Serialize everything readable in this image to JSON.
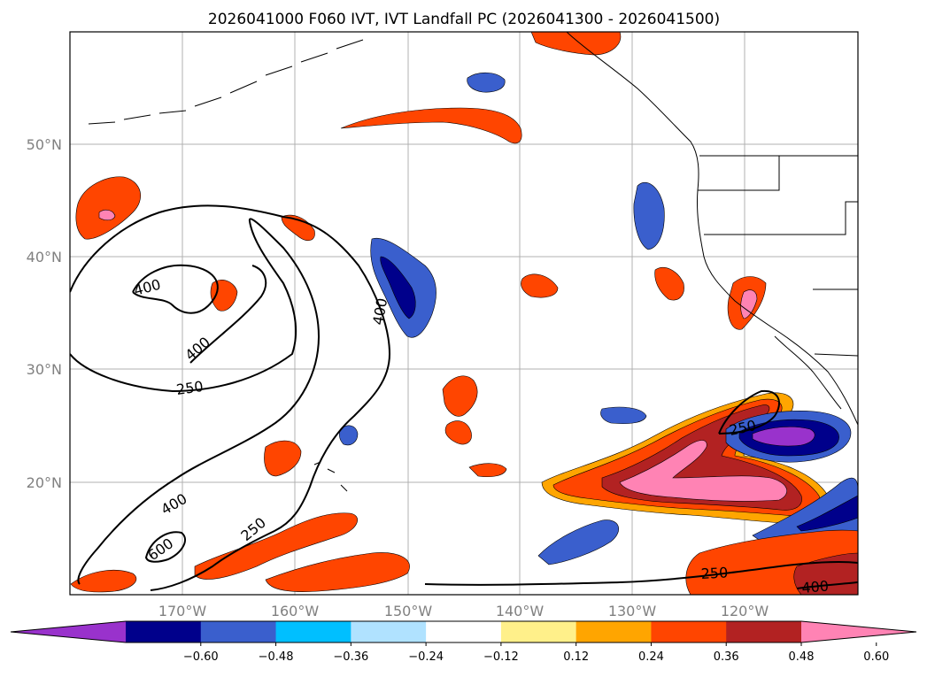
{
  "title": "2026041000 F060 IVT, IVT Landfall PC (2026041300 - 2026041500)",
  "lat_labels": [
    "50°N",
    "40°N",
    "30°N",
    "20°N"
  ],
  "lon_labels": [
    "170°W",
    "160°W",
    "150°W",
    "140°W",
    "130°W",
    "120°W"
  ],
  "colorbar": {
    "colors": [
      "#9932cc",
      "#00008b",
      "#3a5fcd",
      "#00bfff",
      "#b0e2ff",
      "#ffffff",
      "#fff08a",
      "#ffa500",
      "#ff4500",
      "#b22222",
      "#ff83b4"
    ],
    "tick_labels": [
      "−0.60",
      "−0.48",
      "−0.36",
      "−0.24",
      "−0.12",
      "0.12",
      "0.24",
      "0.36",
      "0.48",
      "0.60"
    ]
  },
  "contour_labels": {
    "c400a": "400",
    "c400b": "400",
    "c250a": "250",
    "c400c": "400",
    "c600": "600",
    "c250b": "250",
    "c400d": "400",
    "c250c": "250",
    "c250d": "250",
    "c400e": "400"
  }
}
